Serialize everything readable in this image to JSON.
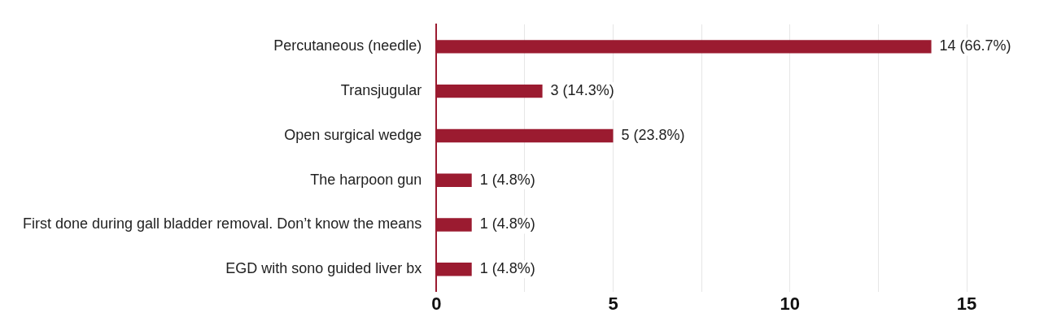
{
  "chart_data": {
    "type": "bar",
    "orientation": "horizontal",
    "categories": [
      "Percutaneous (needle)",
      "Transjugular",
      "Open surgical wedge",
      "The harpoon gun",
      "First done during gall bladder removal. Don’t know the means",
      "EGD with sono guided liver bx"
    ],
    "values": [
      14,
      3,
      5,
      1,
      1,
      1
    ],
    "value_labels": [
      "14 (66.7%)",
      "3 (14.3%)",
      "5 (23.8%)",
      "1 (4.8%)",
      "1 (4.8%)",
      "1 (4.8%)"
    ],
    "color": "#9b1b30",
    "xlim": [
      0,
      15
    ],
    "xticks": [
      0,
      {
        "value": 2.5,
        "label": null
      },
      5,
      {
        "value": 7.5,
        "label": null
      },
      10,
      {
        "value": 12.5,
        "label": null
      },
      15
    ],
    "grid": "x",
    "legend": false
  }
}
